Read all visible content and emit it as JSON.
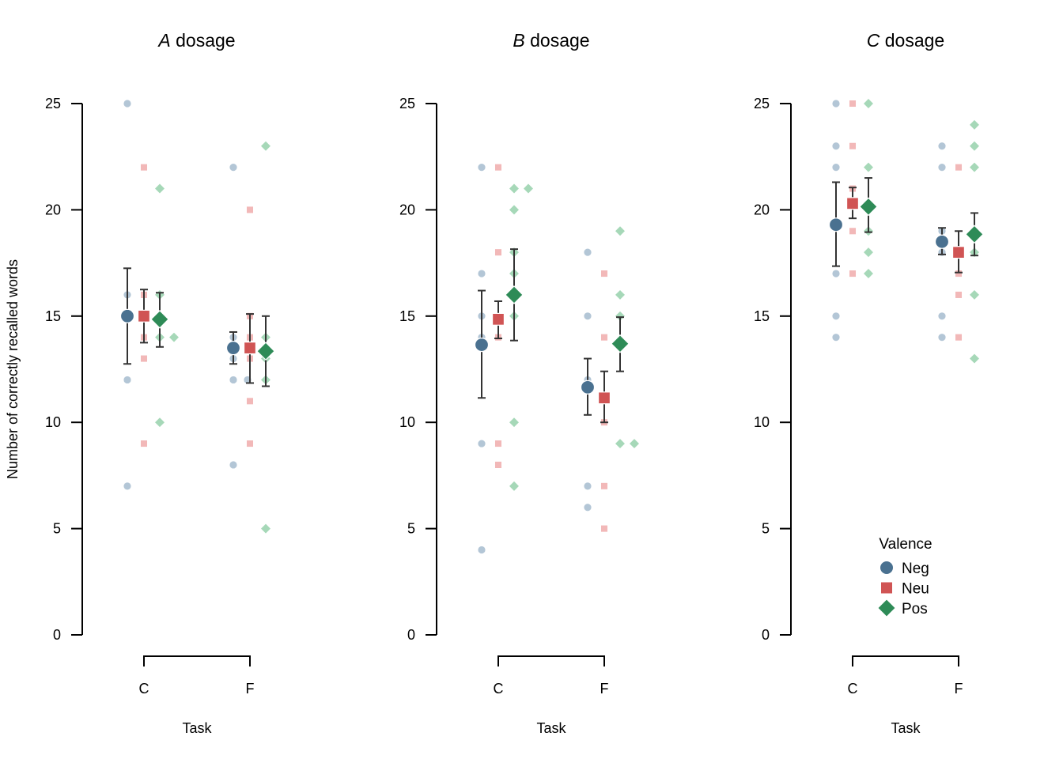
{
  "chart_data": {
    "type": "scatter",
    "subtype": "point-range with raw data (3 facets)",
    "ylabel": "Number of correctly recalled words",
    "xlabel": "Task",
    "ylim": [
      0,
      25
    ],
    "yticks": [
      0,
      5,
      10,
      15,
      20,
      25
    ],
    "categories": [
      "C",
      "F"
    ],
    "grid": false,
    "legend": {
      "title": "Valence",
      "placement": "bottom-right of third panel",
      "entries": [
        {
          "name": "Neg",
          "shape": "circle",
          "color": "#4a7190"
        },
        {
          "name": "Neu",
          "shape": "square",
          "color": "#d05454"
        },
        {
          "name": "Pos",
          "shape": "diamond",
          "color": "#2e8b57"
        }
      ]
    },
    "colors": {
      "Neg": {
        "mean": "#4a7190",
        "raw": "#b3c6d6"
      },
      "Neu": {
        "mean": "#d05454",
        "raw": "#f2b8b8"
      },
      "Pos": {
        "mean": "#2e8b57",
        "raw": "#a6d8b8"
      },
      "errorbar": "#333333",
      "axis": "#000000"
    },
    "panels": [
      {
        "title_italic": "A",
        "title_rest": " dosage",
        "groups": [
          {
            "task": "C",
            "valence": "Neg",
            "mean": 15.0,
            "lower": 12.75,
            "upper": 17.25,
            "raw": [
              25,
              16,
              12,
              7
            ]
          },
          {
            "task": "C",
            "valence": "Neu",
            "mean": 15.0,
            "lower": 13.75,
            "upper": 16.25,
            "raw": [
              22,
              16,
              14,
              13,
              9
            ]
          },
          {
            "task": "C",
            "valence": "Pos",
            "mean": 14.85,
            "lower": 13.55,
            "upper": 16.1,
            "raw": [
              21,
              16,
              15,
              14,
              14,
              10
            ]
          },
          {
            "task": "F",
            "valence": "Neg",
            "mean": 13.5,
            "lower": 12.75,
            "upper": 14.25,
            "raw": [
              22,
              14,
              13,
              12,
              12,
              8
            ]
          },
          {
            "task": "F",
            "valence": "Neu",
            "mean": 13.5,
            "lower": 11.85,
            "upper": 15.1,
            "raw": [
              20,
              15,
              14,
              13,
              11,
              9
            ]
          },
          {
            "task": "F",
            "valence": "Pos",
            "mean": 13.35,
            "lower": 11.7,
            "upper": 15.0,
            "raw": [
              23,
              14,
              13,
              12,
              5
            ]
          }
        ]
      },
      {
        "title_italic": "B",
        "title_rest": " dosage",
        "groups": [
          {
            "task": "C",
            "valence": "Neg",
            "mean": 13.65,
            "lower": 11.15,
            "upper": 16.2,
            "raw": [
              22,
              17,
              15,
              14,
              9,
              4
            ]
          },
          {
            "task": "C",
            "valence": "Neu",
            "mean": 14.85,
            "lower": 13.95,
            "upper": 15.7,
            "raw": [
              22,
              18,
              14,
              9,
              8
            ]
          },
          {
            "task": "C",
            "valence": "Pos",
            "mean": 16.0,
            "lower": 13.85,
            "upper": 18.15,
            "raw": [
              21,
              21,
              20,
              18,
              17,
              15,
              10,
              7
            ]
          },
          {
            "task": "F",
            "valence": "Neg",
            "mean": 11.65,
            "lower": 10.35,
            "upper": 13.0,
            "raw": [
              18,
              15,
              12,
              7,
              6
            ]
          },
          {
            "task": "F",
            "valence": "Neu",
            "mean": 11.15,
            "lower": 10.0,
            "upper": 12.4,
            "raw": [
              17,
              14,
              10,
              7,
              5
            ]
          },
          {
            "task": "F",
            "valence": "Pos",
            "mean": 13.7,
            "lower": 12.4,
            "upper": 14.95,
            "raw": [
              19,
              16,
              15,
              9,
              9
            ]
          }
        ]
      },
      {
        "title_italic": "C",
        "title_rest": " dosage",
        "groups": [
          {
            "task": "C",
            "valence": "Neg",
            "mean": 19.3,
            "lower": 17.35,
            "upper": 21.3,
            "raw": [
              25,
              23,
              22,
              17,
              15,
              14
            ]
          },
          {
            "task": "C",
            "valence": "Neu",
            "mean": 20.3,
            "lower": 19.6,
            "upper": 21.05,
            "raw": [
              25,
              23,
              21,
              19,
              17
            ]
          },
          {
            "task": "C",
            "valence": "Pos",
            "mean": 20.15,
            "lower": 18.95,
            "upper": 21.5,
            "raw": [
              25,
              22,
              19,
              18,
              17
            ]
          },
          {
            "task": "F",
            "valence": "Neg",
            "mean": 18.5,
            "lower": 17.9,
            "upper": 19.15,
            "raw": [
              23,
              22,
              19,
              18,
              15,
              14
            ]
          },
          {
            "task": "F",
            "valence": "Neu",
            "mean": 18.0,
            "lower": 17.05,
            "upper": 19.0,
            "raw": [
              22,
              18,
              17,
              16,
              14
            ]
          },
          {
            "task": "F",
            "valence": "Pos",
            "mean": 18.85,
            "lower": 17.85,
            "upper": 19.85,
            "raw": [
              24,
              23,
              22,
              18,
              16,
              13
            ]
          }
        ]
      }
    ]
  }
}
